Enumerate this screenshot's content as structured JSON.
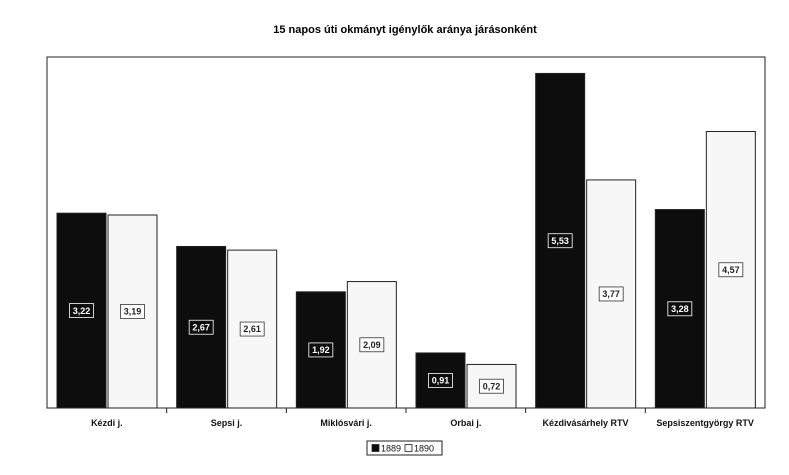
{
  "chart_data": {
    "type": "bar",
    "title": "15 napos úti okmányt igénylők aránya járásonként",
    "xlabel": "",
    "ylabel": "",
    "ylim": [
      0,
      6
    ],
    "grid": false,
    "legend_position": "bottom",
    "categories": [
      "Kézdi j.",
      "Sepsi j.",
      "Miklósvári j.",
      "Orbai j.",
      "Kézdivásárhely RTV",
      "Sepsiszentgyörgy RTV"
    ],
    "series": [
      {
        "name": "1889",
        "color": "#0d0d0d",
        "values": [
          3.22,
          2.67,
          1.92,
          0.91,
          5.53,
          3.28
        ],
        "labels": [
          "3,22",
          "2,67",
          "1,92",
          "0,91",
          "5,53",
          "3,28"
        ]
      },
      {
        "name": "1890",
        "color": "#f7f7f7",
        "values": [
          3.19,
          2.61,
          2.09,
          0.72,
          3.77,
          4.57
        ],
        "labels": [
          "3,19",
          "2,61",
          "2,09",
          "0,72",
          "3,77",
          "4,57"
        ]
      }
    ]
  }
}
